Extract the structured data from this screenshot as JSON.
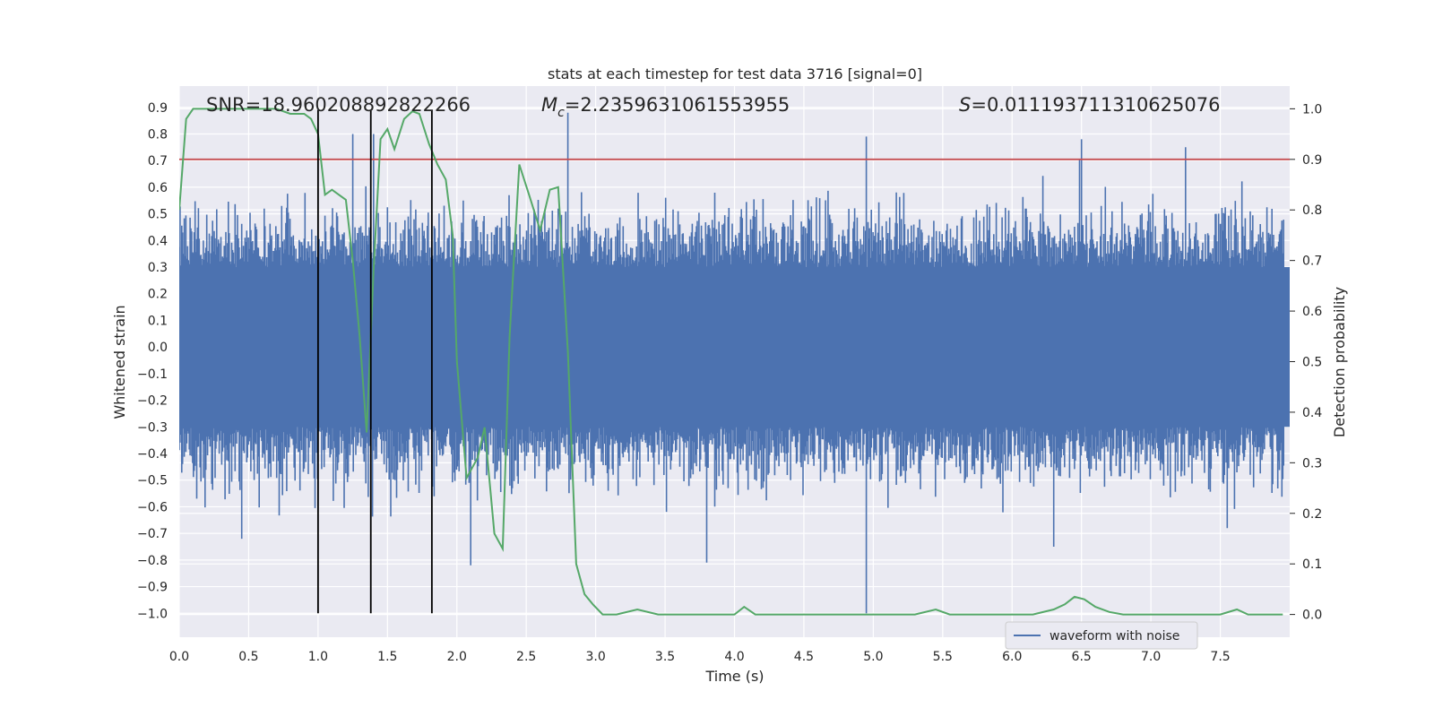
{
  "chart_data": {
    "type": "line",
    "title": "stats at each timestep for test data 3716 [signal=0]",
    "xlabel": "Time (s)",
    "ylabel": "Whitened strain",
    "y2label": "Detection probability",
    "xlim": [
      0.0,
      8.0
    ],
    "ylim": [
      -1.09,
      0.98
    ],
    "y2lim": [
      -0.045,
      1.045
    ],
    "xticks": [
      0.0,
      0.5,
      1.0,
      1.5,
      2.0,
      2.5,
      3.0,
      3.5,
      4.0,
      4.5,
      5.0,
      5.5,
      6.0,
      6.5,
      7.0,
      7.5
    ],
    "xtick_labels": [
      "0.0",
      "0.5",
      "1.0",
      "1.5",
      "2.0",
      "2.5",
      "3.0",
      "3.5",
      "4.0",
      "4.5",
      "5.0",
      "5.5",
      "6.0",
      "6.5",
      "7.0",
      "7.5"
    ],
    "yticks": [
      -1.0,
      -0.9,
      -0.8,
      -0.7,
      -0.6,
      -0.5,
      -0.4,
      -0.3,
      -0.2,
      -0.1,
      0.0,
      0.1,
      0.2,
      0.3,
      0.4,
      0.5,
      0.6,
      0.7,
      0.8,
      0.9
    ],
    "ytick_labels": [
      "−1.0",
      "−0.9",
      "−0.8",
      "−0.7",
      "−0.6",
      "−0.5",
      "−0.4",
      "−0.3",
      "−0.2",
      "−0.1",
      "0.0",
      "0.1",
      "0.2",
      "0.3",
      "0.4",
      "0.5",
      "0.6",
      "0.7",
      "0.8",
      "0.9"
    ],
    "y2ticks": [
      0.0,
      0.1,
      0.2,
      0.3,
      0.4,
      0.5,
      0.6,
      0.7,
      0.8,
      0.9,
      1.0
    ],
    "y2tick_labels": [
      "0.0",
      "0.1",
      "0.2",
      "0.3",
      "0.4",
      "0.5",
      "0.6",
      "0.7",
      "0.8",
      "0.9",
      "1.0"
    ],
    "grid": true,
    "legend_position": "lower-right",
    "annotations": {
      "snr": "SNR=18.960208892822266",
      "mc_symbol": "M",
      "mc_sub": "c",
      "mc_value": "=2.2359631061553955",
      "s_symbol": "S",
      "s_value": "=0.011193711310625076"
    },
    "waveform": {
      "name": "waveform with noise",
      "color": "#4c72b0",
      "sample_rate": 1000,
      "core_amplitude": 0.3,
      "typical_peak": 0.5,
      "max": 0.88,
      "min": -1.0,
      "peaks": [
        [
          2.8,
          0.88
        ],
        [
          4.95,
          0.79
        ],
        [
          6.5,
          0.78
        ],
        [
          7.25,
          0.75
        ],
        [
          1.25,
          0.8
        ],
        [
          1.4,
          0.8
        ],
        [
          4.95,
          -1.0
        ],
        [
          2.1,
          -0.82
        ],
        [
          3.8,
          -0.81
        ],
        [
          6.3,
          -0.75
        ],
        [
          7.55,
          -0.68
        ],
        [
          0.45,
          -0.72
        ]
      ]
    },
    "threshold": {
      "value": 0.9,
      "color": "#c44e52",
      "axis": "y2"
    },
    "vlines": {
      "x": [
        1.0,
        1.38,
        1.82
      ],
      "ymin": -1.0,
      "ymax": 0.89,
      "color": "#000000"
    },
    "probability": {
      "color": "#55a868",
      "axis": "y2",
      "x": [
        0.0,
        0.05,
        0.1,
        0.2,
        0.3,
        0.4,
        0.5,
        0.6,
        0.7,
        0.8,
        0.9,
        0.95,
        1.0,
        1.05,
        1.1,
        1.2,
        1.25,
        1.3,
        1.35,
        1.4,
        1.45,
        1.5,
        1.55,
        1.62,
        1.68,
        1.73,
        1.8,
        1.86,
        1.92,
        1.97,
        2.0,
        2.07,
        2.15,
        2.2,
        2.27,
        2.33,
        2.38,
        2.45,
        2.52,
        2.6,
        2.67,
        2.73,
        2.8,
        2.86,
        2.92,
        2.98,
        3.05,
        3.15,
        3.3,
        3.45,
        3.6,
        3.75,
        3.9,
        4.0,
        4.07,
        4.15,
        4.3,
        4.5,
        4.7,
        4.9,
        5.0,
        5.15,
        5.3,
        5.45,
        5.55,
        5.7,
        5.85,
        6.0,
        6.15,
        6.3,
        6.38,
        6.45,
        6.52,
        6.6,
        6.7,
        6.8,
        6.95,
        7.1,
        7.3,
        7.5,
        7.62,
        7.7,
        7.9,
        7.95
      ],
      "y": [
        0.8,
        0.98,
        1.0,
        1.0,
        1.0,
        1.0,
        1.0,
        1.0,
        1.0,
        0.99,
        0.99,
        0.98,
        0.95,
        0.83,
        0.84,
        0.82,
        0.7,
        0.55,
        0.36,
        0.68,
        0.94,
        0.96,
        0.92,
        0.98,
        0.995,
        0.99,
        0.93,
        0.89,
        0.86,
        0.75,
        0.5,
        0.27,
        0.31,
        0.37,
        0.16,
        0.13,
        0.55,
        0.89,
        0.83,
        0.76,
        0.84,
        0.845,
        0.52,
        0.1,
        0.04,
        0.02,
        0.0,
        0.0,
        0.01,
        0.0,
        0.0,
        0.0,
        0.0,
        0.0,
        0.015,
        0.0,
        0.0,
        0.0,
        0.0,
        0.0,
        0.0,
        0.0,
        0.0,
        0.01,
        0.0,
        0.0,
        0.0,
        0.0,
        0.0,
        0.01,
        0.02,
        0.035,
        0.03,
        0.015,
        0.005,
        0.0,
        0.0,
        0.0,
        0.0,
        0.0,
        0.01,
        0.0,
        0.0,
        0.0
      ]
    }
  }
}
